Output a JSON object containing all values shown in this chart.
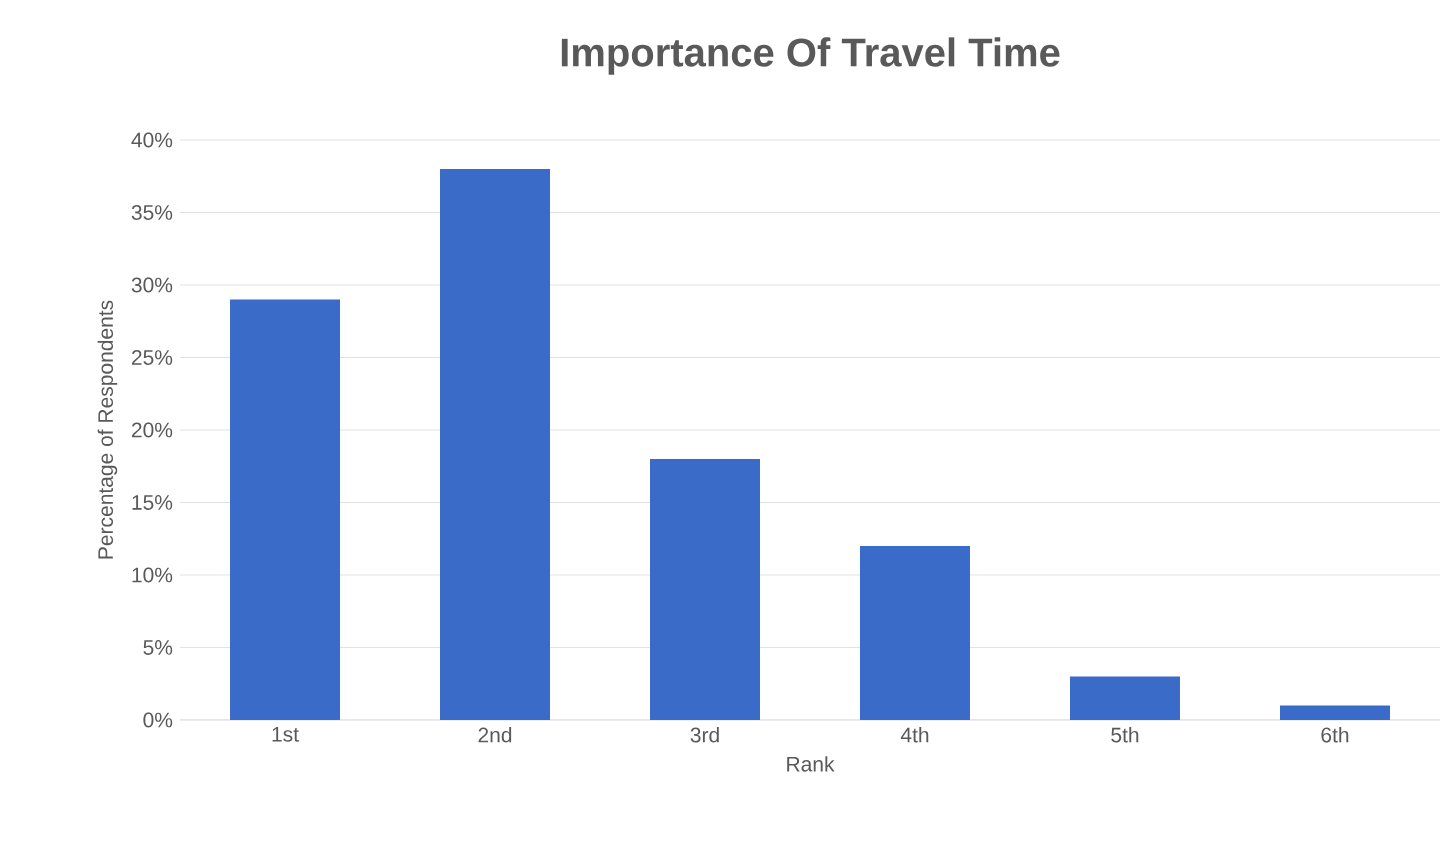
{
  "chart_data": {
    "type": "bar",
    "title": "Importance Of Travel Time",
    "xlabel": "Rank",
    "ylabel": "Percentage of Respondents",
    "categories": [
      "1st",
      "2nd",
      "3rd",
      "4th",
      "5th",
      "6th"
    ],
    "values": [
      29,
      38,
      18,
      12,
      3,
      1
    ],
    "color": "#3a6bc8",
    "ylim": [
      0,
      40
    ],
    "yticks": [
      {
        "value": 0,
        "label": "0%"
      },
      {
        "value": 5,
        "label": "5%"
      },
      {
        "value": 10,
        "label": "10%"
      },
      {
        "value": 15,
        "label": "15%"
      },
      {
        "value": 20,
        "label": "20%"
      },
      {
        "value": 25,
        "label": "25%"
      },
      {
        "value": 30,
        "label": "30%"
      },
      {
        "value": 35,
        "label": "35%"
      },
      {
        "value": 40,
        "label": "40%"
      }
    ],
    "grid": "y"
  }
}
